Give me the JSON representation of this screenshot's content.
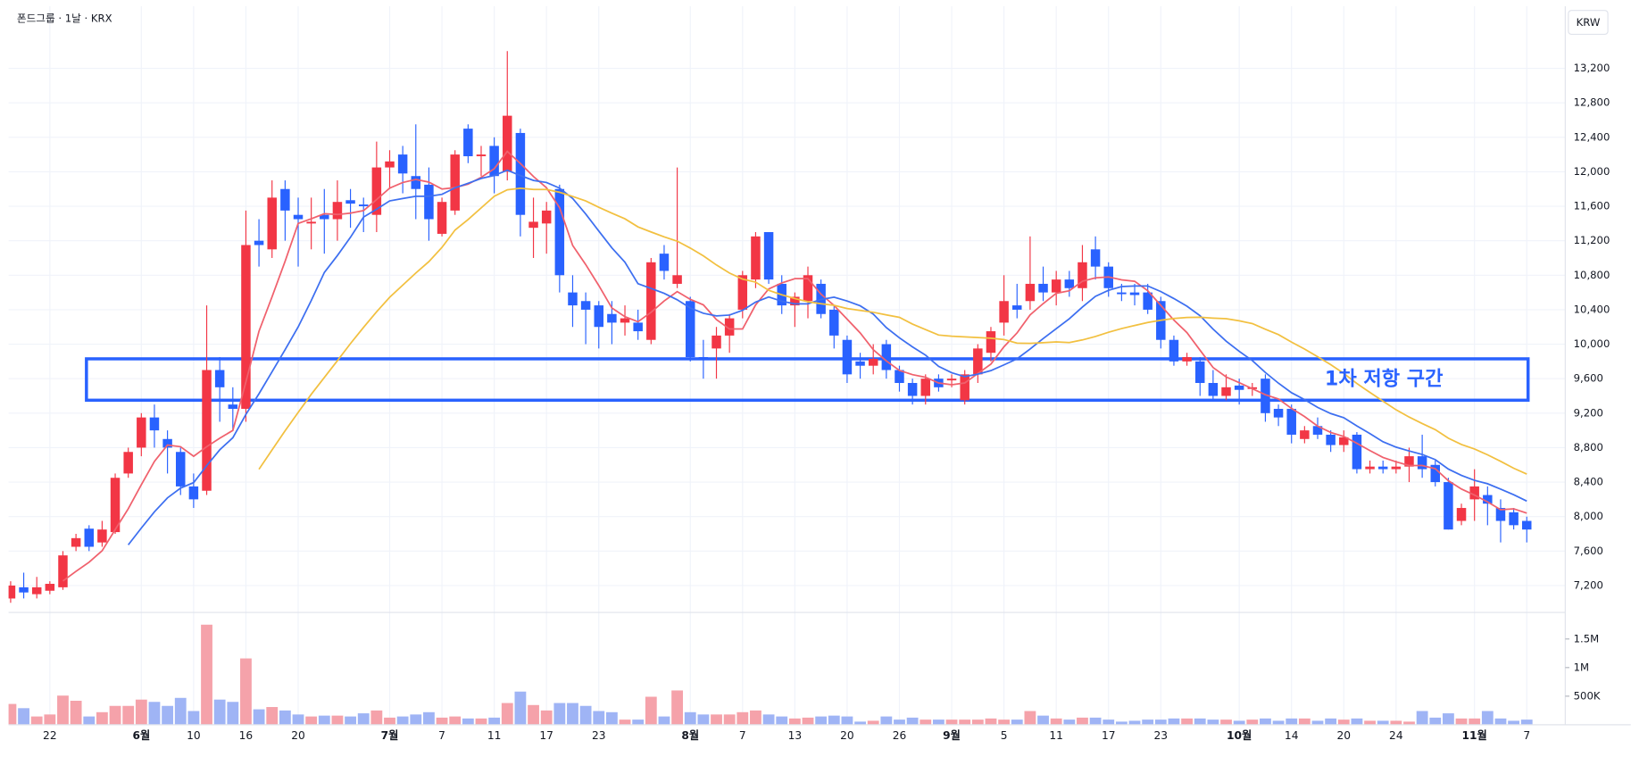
{
  "chart_data": {
    "type": "candlestick",
    "title": "폰드그룹 · 1날 · KRX",
    "currency_button": "KRW",
    "up_color": "#f23645",
    "down_color": "#2962ff",
    "volume_up_color": "#f5a2aa",
    "volume_down_color": "#9fb4f5",
    "grid": true,
    "ylim": [
      6900,
      13920
    ],
    "yticks": [
      {
        "value": 7200,
        "label": "7,200"
      },
      {
        "value": 7600,
        "label": "7,600"
      },
      {
        "value": 8000,
        "label": "8,000"
      },
      {
        "value": 8400,
        "label": "8,400"
      },
      {
        "value": 8800,
        "label": "8,800"
      },
      {
        "value": 9200,
        "label": "9,200"
      },
      {
        "value": 9600,
        "label": "9,600"
      },
      {
        "value": 10000,
        "label": "10,000"
      },
      {
        "value": 10400,
        "label": "10,400"
      },
      {
        "value": 10800,
        "label": "10,800"
      },
      {
        "value": 11200,
        "label": "11,200"
      },
      {
        "value": 11600,
        "label": "11,600"
      },
      {
        "value": 12000,
        "label": "12,000"
      },
      {
        "value": 12400,
        "label": "12,400"
      },
      {
        "value": 12800,
        "label": "12,800"
      },
      {
        "value": 13200,
        "label": "13,200"
      }
    ],
    "volume_ylim": [
      0,
      1800000
    ],
    "volume_ticks": [
      {
        "value": 500000,
        "label": "500K"
      },
      {
        "value": 1000000,
        "label": "1M"
      },
      {
        "value": 1500000,
        "label": "1.5M"
      }
    ],
    "xticks": [
      {
        "value": 3,
        "label": "22"
      },
      {
        "value": 10,
        "label": "6월",
        "major": true
      },
      {
        "value": 14,
        "label": "10"
      },
      {
        "value": 18,
        "label": "16"
      },
      {
        "value": 22,
        "label": "20"
      },
      {
        "value": 29,
        "label": "7월",
        "major": true
      },
      {
        "value": 33,
        "label": "7"
      },
      {
        "value": 37,
        "label": "11"
      },
      {
        "value": 41,
        "label": "17"
      },
      {
        "value": 45,
        "label": "23"
      },
      {
        "value": 52,
        "label": "8월",
        "major": true
      },
      {
        "value": 56,
        "label": "7"
      },
      {
        "value": 60,
        "label": "13"
      },
      {
        "value": 64,
        "label": "20"
      },
      {
        "value": 68,
        "label": "26"
      },
      {
        "value": 72,
        "label": "9월",
        "major": true
      },
      {
        "value": 76,
        "label": "5"
      },
      {
        "value": 80,
        "label": "11"
      },
      {
        "value": 84,
        "label": "17"
      },
      {
        "value": 88,
        "label": "23"
      },
      {
        "value": 94,
        "label": "10월",
        "major": true
      },
      {
        "value": 98,
        "label": "14"
      },
      {
        "value": 102,
        "label": "20"
      },
      {
        "value": 106,
        "label": "24"
      },
      {
        "value": 112,
        "label": "11월",
        "major": true
      },
      {
        "value": 116,
        "label": "7"
      }
    ],
    "moving_averages": [
      {
        "period": 5,
        "color": "#f0616d"
      },
      {
        "period": 10,
        "color": "#3d6ff0"
      },
      {
        "period": 20,
        "color": "#f2c040"
      }
    ],
    "zone": {
      "label": "1차 저항 구간",
      "low": 9350,
      "high": 9830,
      "start": 5.8,
      "end": 116.1,
      "color": "#2962ff"
    },
    "candles": [
      [
        7050,
        7250,
        7000,
        7200
      ],
      [
        7180,
        7350,
        7050,
        7120
      ],
      [
        7100,
        7300,
        7050,
        7180
      ],
      [
        7140,
        7250,
        7100,
        7220
      ],
      [
        7180,
        7600,
        7150,
        7550
      ],
      [
        7650,
        7800,
        7600,
        7750
      ],
      [
        7860,
        7900,
        7600,
        7650
      ],
      [
        7700,
        7950,
        7650,
        7850
      ],
      [
        7820,
        8500,
        7800,
        8450
      ],
      [
        8500,
        8800,
        8450,
        8750
      ],
      [
        8800,
        9200,
        8700,
        9150
      ],
      [
        9150,
        9300,
        8800,
        9000
      ],
      [
        8900,
        9000,
        8500,
        8800
      ],
      [
        8750,
        8800,
        8250,
        8350
      ],
      [
        8350,
        8500,
        8100,
        8200
      ],
      [
        8300,
        10450,
        8250,
        9700
      ],
      [
        9700,
        9850,
        9100,
        9500
      ],
      [
        9300,
        9500,
        9000,
        9250
      ],
      [
        9250,
        11550,
        9100,
        11150
      ],
      [
        11200,
        11450,
        10900,
        11150
      ],
      [
        11100,
        11900,
        11000,
        11700
      ],
      [
        11800,
        11900,
        11200,
        11550
      ],
      [
        11500,
        11700,
        10900,
        11450
      ],
      [
        11400,
        11700,
        11100,
        11420
      ],
      [
        11500,
        11800,
        11050,
        11450
      ],
      [
        11450,
        11900,
        11200,
        11650
      ],
      [
        11670,
        11800,
        11350,
        11630
      ],
      [
        11620,
        11700,
        11300,
        11600
      ],
      [
        11500,
        12350,
        11300,
        12050
      ],
      [
        12050,
        12250,
        11800,
        12120
      ],
      [
        12200,
        12300,
        11750,
        11980
      ],
      [
        11950,
        12550,
        11450,
        11800
      ],
      [
        11850,
        12050,
        11200,
        11450
      ],
      [
        11280,
        11700,
        11250,
        11650
      ],
      [
        11550,
        12250,
        11500,
        12200
      ],
      [
        12500,
        12550,
        12100,
        12180
      ],
      [
        12180,
        12300,
        11950,
        12200
      ],
      [
        12300,
        12400,
        11750,
        11950
      ],
      [
        12000,
        13400,
        11900,
        12650
      ],
      [
        12450,
        12500,
        11250,
        11500
      ],
      [
        11350,
        11700,
        11000,
        11420
      ],
      [
        11400,
        11650,
        11050,
        11550
      ],
      [
        11800,
        11850,
        10600,
        10800
      ],
      [
        10600,
        10800,
        10200,
        10450
      ],
      [
        10500,
        10600,
        10000,
        10400
      ],
      [
        10450,
        10500,
        9950,
        10200
      ],
      [
        10350,
        10500,
        10000,
        10250
      ],
      [
        10250,
        10450,
        10100,
        10300
      ],
      [
        10250,
        10400,
        10050,
        10150
      ],
      [
        10050,
        11000,
        10000,
        10950
      ],
      [
        11050,
        11150,
        10750,
        10850
      ],
      [
        10700,
        12050,
        10650,
        10800
      ],
      [
        10500,
        10550,
        9800,
        9850
      ],
      [
        9850,
        10050,
        9600,
        9830
      ],
      [
        9950,
        10200,
        9600,
        10100
      ],
      [
        10100,
        10350,
        9900,
        10300
      ],
      [
        10400,
        10850,
        10300,
        10800
      ],
      [
        10750,
        11300,
        10650,
        11250
      ],
      [
        11300,
        11300,
        10700,
        10750
      ],
      [
        10700,
        10800,
        10350,
        10450
      ],
      [
        10450,
        10600,
        10200,
        10550
      ],
      [
        10500,
        10900,
        10300,
        10800
      ],
      [
        10700,
        10750,
        10300,
        10350
      ],
      [
        10400,
        10450,
        9950,
        10100
      ],
      [
        10050,
        10100,
        9550,
        9650
      ],
      [
        9800,
        9900,
        9600,
        9750
      ],
      [
        9750,
        10000,
        9650,
        9830
      ],
      [
        10000,
        10050,
        9600,
        9700
      ],
      [
        9700,
        9750,
        9450,
        9550
      ],
      [
        9550,
        9600,
        9300,
        9400
      ],
      [
        9400,
        9650,
        9300,
        9600
      ],
      [
        9600,
        9650,
        9450,
        9500
      ],
      [
        9580,
        9650,
        9500,
        9600
      ],
      [
        9350,
        9700,
        9300,
        9650
      ],
      [
        9650,
        10000,
        9550,
        9950
      ],
      [
        9900,
        10200,
        9800,
        10150
      ],
      [
        10250,
        10800,
        10100,
        10500
      ],
      [
        10450,
        10700,
        10300,
        10400
      ],
      [
        10500,
        11250,
        10400,
        10700
      ],
      [
        10700,
        10900,
        10500,
        10600
      ],
      [
        10600,
        10850,
        10450,
        10750
      ],
      [
        10750,
        10850,
        10550,
        10650
      ],
      [
        10650,
        11150,
        10500,
        10950
      ],
      [
        11100,
        11250,
        10750,
        10900
      ],
      [
        10900,
        10950,
        10550,
        10650
      ],
      [
        10600,
        10700,
        10500,
        10580
      ],
      [
        10600,
        10700,
        10450,
        10570
      ],
      [
        10600,
        10700,
        10350,
        10400
      ],
      [
        10500,
        10550,
        9950,
        10050
      ],
      [
        10050,
        10100,
        9750,
        9800
      ],
      [
        9800,
        9900,
        9750,
        9850
      ],
      [
        9800,
        9850,
        9400,
        9550
      ],
      [
        9550,
        9700,
        9350,
        9400
      ],
      [
        9400,
        9650,
        9350,
        9500
      ],
      [
        9520,
        9600,
        9300,
        9470
      ],
      [
        9480,
        9550,
        9400,
        9500
      ],
      [
        9600,
        9650,
        9100,
        9200
      ],
      [
        9250,
        9300,
        9050,
        9150
      ],
      [
        9250,
        9300,
        8850,
        8950
      ],
      [
        8900,
        9050,
        8850,
        9000
      ],
      [
        9050,
        9150,
        8900,
        8950
      ],
      [
        8950,
        9000,
        8750,
        8830
      ],
      [
        8830,
        9000,
        8750,
        8920
      ],
      [
        8950,
        8980,
        8500,
        8550
      ],
      [
        8550,
        8650,
        8500,
        8580
      ],
      [
        8580,
        8650,
        8500,
        8550
      ],
      [
        8550,
        8650,
        8500,
        8580
      ],
      [
        8580,
        8800,
        8400,
        8700
      ],
      [
        8700,
        8950,
        8450,
        8550
      ],
      [
        8600,
        8650,
        8350,
        8400
      ],
      [
        8400,
        8450,
        7850,
        7850
      ],
      [
        7950,
        8150,
        7900,
        8100
      ],
      [
        8200,
        8550,
        7950,
        8350
      ],
      [
        8250,
        8350,
        7900,
        8150
      ],
      [
        8100,
        8200,
        7700,
        7950
      ],
      [
        8050,
        8100,
        7850,
        7900
      ],
      [
        7950,
        8000,
        7700,
        7850
      ]
    ],
    "volumes": [
      364000,
      290000,
      145000,
      180000,
      510000,
      420000,
      145000,
      220000,
      330000,
      330000,
      440000,
      400000,
      330000,
      470000,
      240000,
      1750000,
      440000,
      400000,
      1160000,
      270000,
      310000,
      250000,
      180000,
      145000,
      160000,
      160000,
      145000,
      200000,
      250000,
      125000,
      145000,
      180000,
      220000,
      125000,
      145000,
      110000,
      110000,
      125000,
      380000,
      580000,
      345000,
      250000,
      380000,
      380000,
      330000,
      240000,
      220000,
      90000,
      90000,
      490000,
      145000,
      600000,
      220000,
      180000,
      180000,
      180000,
      220000,
      250000,
      180000,
      145000,
      110000,
      125000,
      145000,
      160000,
      145000,
      55000,
      70000,
      145000,
      90000,
      125000,
      90000,
      90000,
      90000,
      90000,
      90000,
      110000,
      90000,
      90000,
      240000,
      160000,
      110000,
      90000,
      125000,
      125000,
      90000,
      55000,
      70000,
      90000,
      90000,
      110000,
      110000,
      110000,
      90000,
      90000,
      70000,
      90000,
      110000,
      70000,
      110000,
      110000,
      70000,
      110000,
      90000,
      110000,
      70000,
      70000,
      70000,
      55000,
      240000,
      125000,
      200000,
      110000,
      110000,
      240000,
      110000,
      70000,
      90000
    ]
  }
}
